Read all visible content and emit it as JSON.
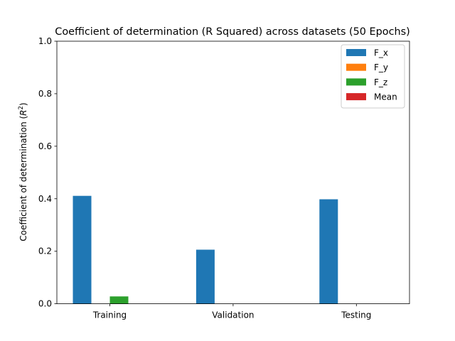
{
  "chart_data": {
    "type": "bar",
    "title": "Coefficient of determination (R Squared) across datasets (50 Epochs)",
    "xlabel": "",
    "ylabel_main": "Coefficient of determination (",
    "ylabel_symbol": "R",
    "ylabel_sup": "2",
    "ylabel_end": ")",
    "ylim": [
      0,
      1.0
    ],
    "yticks": [
      "0.0",
      "0.2",
      "0.4",
      "0.6",
      "0.8",
      "1.0"
    ],
    "categories": [
      "Training",
      "Validation",
      "Testing"
    ],
    "series": [
      {
        "name": "F_x",
        "color": "#1f77b4",
        "values": [
          0.411,
          0.206,
          0.398
        ]
      },
      {
        "name": "F_y",
        "color": "#ff7f0e",
        "values": [
          0.0,
          0.0,
          0.0
        ]
      },
      {
        "name": "F_z",
        "color": "#2ca02c",
        "values": [
          0.028,
          0.0,
          0.0
        ]
      },
      {
        "name": "Mean",
        "color": "#d62728",
        "values": [
          0.0,
          0.0,
          0.0
        ]
      }
    ],
    "legend": "top-right",
    "grid": false
  }
}
